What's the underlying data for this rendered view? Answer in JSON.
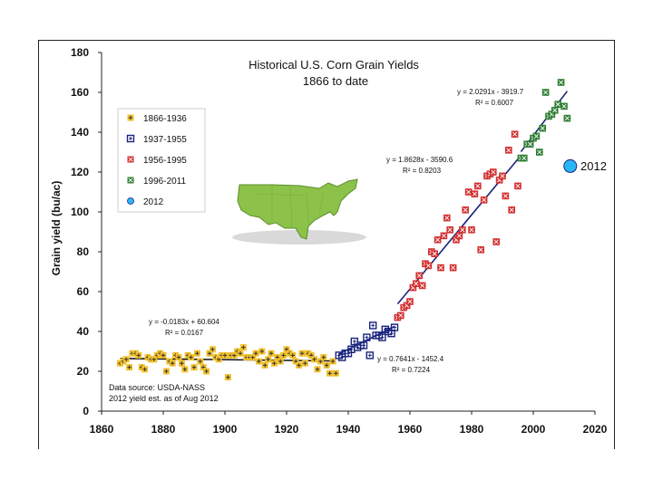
{
  "chart_data": {
    "type": "scatter",
    "title": "Historical U.S. Corn Grain Yields",
    "subtitle": "1866 to date",
    "xlabel": "",
    "ylabel": "Grain yield (bu/ac)",
    "xlim": [
      1860,
      2020
    ],
    "ylim": [
      0,
      180
    ],
    "xticks": [
      "1860",
      "1880",
      "1900",
      "1920",
      "1940",
      "1960",
      "1980",
      "2000",
      "2020"
    ],
    "yticks": [
      "0",
      "20",
      "40",
      "60",
      "80",
      "100",
      "120",
      "140",
      "160",
      "180"
    ],
    "grid": false,
    "legend_position": "top-left",
    "series": [
      {
        "name": "1866-1936",
        "color": "#f2c12e",
        "marker": "plus",
        "x": [
          1866,
          1867,
          1868,
          1869,
          1870,
          1871,
          1872,
          1873,
          1874,
          1875,
          1876,
          1877,
          1878,
          1879,
          1880,
          1881,
          1882,
          1883,
          1884,
          1885,
          1886,
          1887,
          1888,
          1889,
          1890,
          1891,
          1892,
          1893,
          1894,
          1895,
          1896,
          1897,
          1898,
          1899,
          1900,
          1901,
          1902,
          1903,
          1904,
          1905,
          1906,
          1907,
          1908,
          1909,
          1910,
          1911,
          1912,
          1913,
          1914,
          1915,
          1916,
          1917,
          1918,
          1919,
          1920,
          1921,
          1922,
          1923,
          1924,
          1925,
          1926,
          1927,
          1928,
          1929,
          1930,
          1931,
          1932,
          1933,
          1934,
          1935,
          1936
        ],
        "y": [
          24,
          25,
          26,
          22,
          29,
          29,
          28,
          22,
          21,
          27,
          26,
          26,
          28,
          29,
          28,
          20,
          25,
          24,
          28,
          27,
          24,
          21,
          28,
          27,
          22,
          29,
          25,
          22,
          20,
          29,
          31,
          27,
          26,
          28,
          28,
          17,
          28,
          28,
          30,
          29,
          32,
          27,
          27,
          27,
          29,
          25,
          30,
          23,
          26,
          29,
          24,
          27,
          25,
          28,
          31,
          29,
          28,
          25,
          23,
          29,
          24,
          29,
          28,
          26,
          21,
          25,
          27,
          23,
          19,
          25,
          19
        ]
      },
      {
        "name": "1937-1955",
        "color": "#1a237e",
        "marker": "square-plus",
        "x": [
          1937,
          1938,
          1939,
          1940,
          1941,
          1942,
          1943,
          1944,
          1945,
          1946,
          1947,
          1948,
          1949,
          1950,
          1951,
          1952,
          1953,
          1954,
          1955
        ],
        "y": [
          28,
          27,
          29,
          29,
          31,
          35,
          32,
          33,
          33,
          37,
          28,
          43,
          38,
          38,
          37,
          41,
          40,
          39,
          42
        ]
      },
      {
        "name": "1956-1995",
        "color": "#d32f2f",
        "marker": "square-x",
        "x": [
          1956,
          1957,
          1958,
          1959,
          1960,
          1961,
          1962,
          1963,
          1964,
          1965,
          1966,
          1967,
          1968,
          1969,
          1970,
          1971,
          1972,
          1973,
          1974,
          1975,
          1976,
          1977,
          1978,
          1979,
          1980,
          1981,
          1982,
          1983,
          1984,
          1985,
          1986,
          1987,
          1988,
          1989,
          1990,
          1991,
          1992,
          1993,
          1994,
          1995
        ],
        "y": [
          47,
          48,
          52,
          53,
          55,
          62,
          64,
          68,
          63,
          74,
          73,
          80,
          79,
          86,
          72,
          88,
          97,
          91,
          72,
          86,
          88,
          91,
          101,
          110,
          91,
          109,
          113,
          81,
          106,
          118,
          119,
          120,
          85,
          116,
          118,
          108,
          131,
          101,
          139,
          113
        ]
      },
      {
        "name": "1996-2011",
        "color": "#2e7d32",
        "marker": "square-x",
        "x": [
          1996,
          1997,
          1998,
          1999,
          2000,
          2001,
          2002,
          2003,
          2004,
          2005,
          2006,
          2007,
          2008,
          2009,
          2010,
          2011
        ],
        "y": [
          127,
          127,
          134,
          134,
          137,
          138,
          130,
          142,
          160,
          148,
          149,
          151,
          154,
          165,
          153,
          147
        ]
      },
      {
        "name": "2012",
        "color": "#29b6f6",
        "marker": "circle",
        "x": [
          2012
        ],
        "y": [
          123
        ]
      }
    ],
    "trendlines": [
      {
        "label": "y = -0.0183x + 60.604",
        "r2": "R² = 0.0167",
        "x": [
          1866,
          1936
        ],
        "y": [
          26.45,
          25.17
        ],
        "color": "#111111"
      },
      {
        "label": "y = 0.7641x - 1452.4",
        "r2": "R² = 0.7224",
        "x": [
          1937,
          1955
        ],
        "y": [
          28.7,
          42.5
        ],
        "color": "#1a237e"
      },
      {
        "label": "y = 1.8628x - 3590.6",
        "r2": "R² = 0.8203",
        "x": [
          1956,
          1995
        ],
        "y": [
          53.8,
          126.5
        ],
        "color": "#1a237e"
      },
      {
        "label": "y = 2.0291x - 3919.7",
        "r2": "R² = 0.6007",
        "x": [
          1996,
          2011
        ],
        "y": [
          130.2,
          160.6
        ],
        "color": "#1a237e"
      }
    ],
    "annotations": {
      "point_label": "2012",
      "source_line1": "Data source: USDA-NASS",
      "source_line2": "2012 yield est. as of Aug 2012"
    }
  }
}
